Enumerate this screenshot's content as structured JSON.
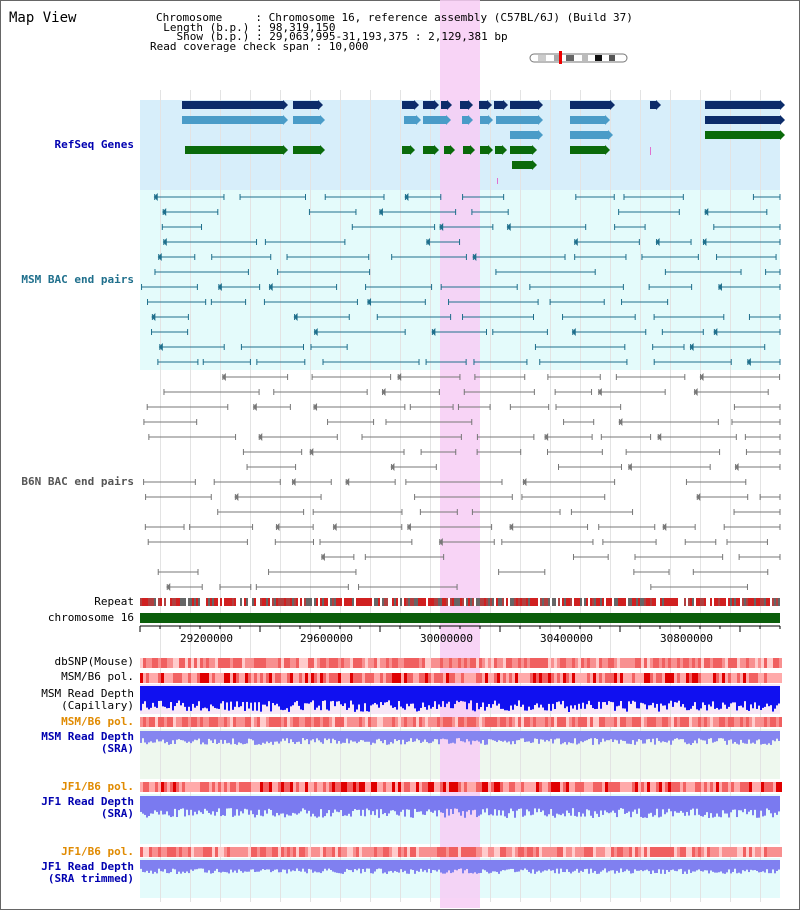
{
  "title": "Map View",
  "header": {
    "chromosome_key": "Chromosome     : ",
    "chromosome_val": "Chromosome 16, reference assembly (C57BL/6J) (Build 37)",
    "length_key": "  Length (b.p.) : ",
    "length_val": "98,319,150",
    "show_key": "    Show (b.p.) : ",
    "show_val": "29,063,995-31,193,375 : 2,129,381 bp",
    "coverage_key": "Read coverage check span : ",
    "coverage_val": "10,000"
  },
  "tracks": {
    "refseq": "RefSeq Genes",
    "msm_bac": "MSM BAC end pairs",
    "b6n_bac": "B6N BAC end pairs",
    "repeat": "Repeat",
    "chromosome": "chromosome 16",
    "dbsnp": "dbSNP(Mouse)",
    "msm_b6_pol": "MSM/B6 pol.",
    "msm_read_depth_cap": "MSM Read Depth\n(Capillary)",
    "msm_b6_pol_2": "MSM/B6 pol.",
    "msm_read_depth_sra": "MSM Read Depth\n(SRA)",
    "jf1_b6_pol": "JF1/B6 pol.",
    "jf1_read_depth_sra": "JF1 Read Depth\n(SRA)",
    "jf1_b6_pol_2": "JF1/B6 pol.",
    "jf1_read_depth_trim": "JF1 Read Depth\n(SRA trimmed)"
  },
  "axis": {
    "ticks": [
      "29200000",
      "29600000",
      "30000000",
      "30400000",
      "30800000"
    ]
  },
  "colors": {
    "refseq_bg": "#d7eefa",
    "msm_bg": "#e4fbfb",
    "b6n_bg": "#ffffff",
    "highlight": "#f7ccf4",
    "gene_dark": "#0c2c6a",
    "gene_mid": "#4a9cc8",
    "gene_green": "#0a6a0a",
    "msm_line": "#1f6f8c",
    "b6n_line": "#777777",
    "chromosome": "#0b5e0b",
    "orange_label": "#e08a00",
    "blue_label": "#0000b0"
  }
}
